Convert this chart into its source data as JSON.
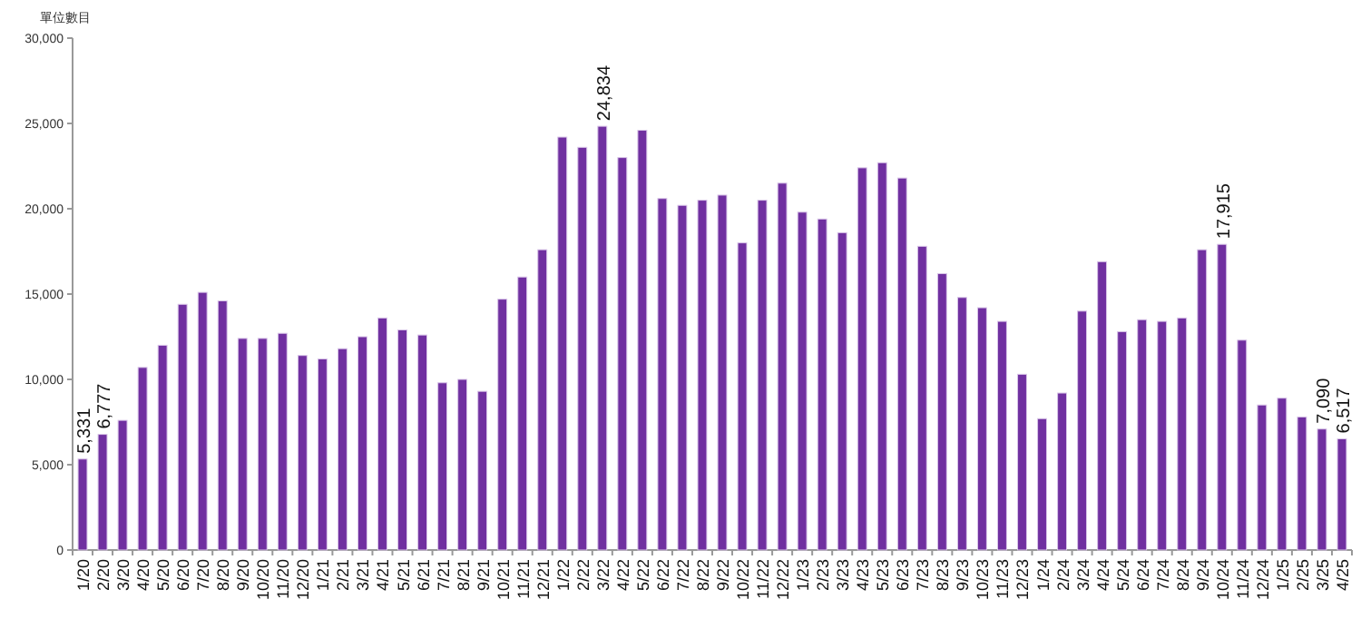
{
  "chart_data": {
    "type": "bar",
    "ylabel": "單位數目",
    "categories": [
      "1/20",
      "2/20",
      "3/20",
      "4/20",
      "5/20",
      "6/20",
      "7/20",
      "8/20",
      "9/20",
      "10/20",
      "11/20",
      "12/20",
      "1/21",
      "2/21",
      "3/21",
      "4/21",
      "5/21",
      "6/21",
      "7/21",
      "8/21",
      "9/21",
      "10/21",
      "11/21",
      "12/21",
      "1/22",
      "2/22",
      "3/22",
      "4/22",
      "5/22",
      "6/22",
      "7/22",
      "8/22",
      "9/22",
      "10/22",
      "11/22",
      "12/22",
      "1/23",
      "2/23",
      "3/23",
      "4/23",
      "5/23",
      "6/23",
      "7/23",
      "8/23",
      "9/23",
      "10/23",
      "11/23",
      "12/23",
      "1/24",
      "2/24",
      "3/24",
      "4/24",
      "5/24",
      "6/24",
      "7/24",
      "8/24",
      "9/24",
      "10/24",
      "11/24",
      "12/24",
      "1/25",
      "2/25",
      "3/25",
      "4/25"
    ],
    "values": [
      5331,
      6777,
      7600,
      10700,
      12000,
      14400,
      15100,
      14600,
      12400,
      12400,
      12700,
      11400,
      11200,
      11800,
      12500,
      13600,
      12900,
      12600,
      9800,
      10000,
      9300,
      14700,
      16000,
      17600,
      24200,
      23600,
      24834,
      23000,
      24600,
      20600,
      20200,
      20500,
      20800,
      18000,
      20500,
      21500,
      19800,
      19400,
      18600,
      22400,
      22700,
      21800,
      17800,
      16200,
      14800,
      14200,
      13400,
      10300,
      7700,
      9200,
      14000,
      16900,
      12800,
      13500,
      13400,
      13600,
      17600,
      17915,
      12300,
      8500,
      8900,
      7800,
      7090,
      6517
    ],
    "value_labels": [
      "5,331",
      "6,777",
      null,
      null,
      null,
      null,
      null,
      null,
      null,
      null,
      null,
      null,
      null,
      null,
      null,
      null,
      null,
      null,
      null,
      null,
      null,
      null,
      null,
      null,
      null,
      null,
      "24,834",
      null,
      null,
      null,
      null,
      null,
      null,
      null,
      null,
      null,
      null,
      null,
      null,
      null,
      null,
      null,
      null,
      null,
      null,
      null,
      null,
      null,
      null,
      null,
      null,
      null,
      null,
      null,
      null,
      null,
      null,
      "17,915",
      null,
      null,
      null,
      null,
      "7,090",
      "6,517"
    ],
    "color": "#7030a0",
    "ylim": [
      0,
      30000
    ],
    "yticks": [
      {
        "value": 0,
        "label": "0"
      },
      {
        "value": 5000,
        "label": "5,000"
      },
      {
        "value": 10000,
        "label": "10,000"
      },
      {
        "value": 15000,
        "label": "15,000"
      },
      {
        "value": 20000,
        "label": "20,000"
      },
      {
        "value": 25000,
        "label": "25,000"
      },
      {
        "value": 30000,
        "label": "30,000"
      }
    ],
    "grid": false
  }
}
